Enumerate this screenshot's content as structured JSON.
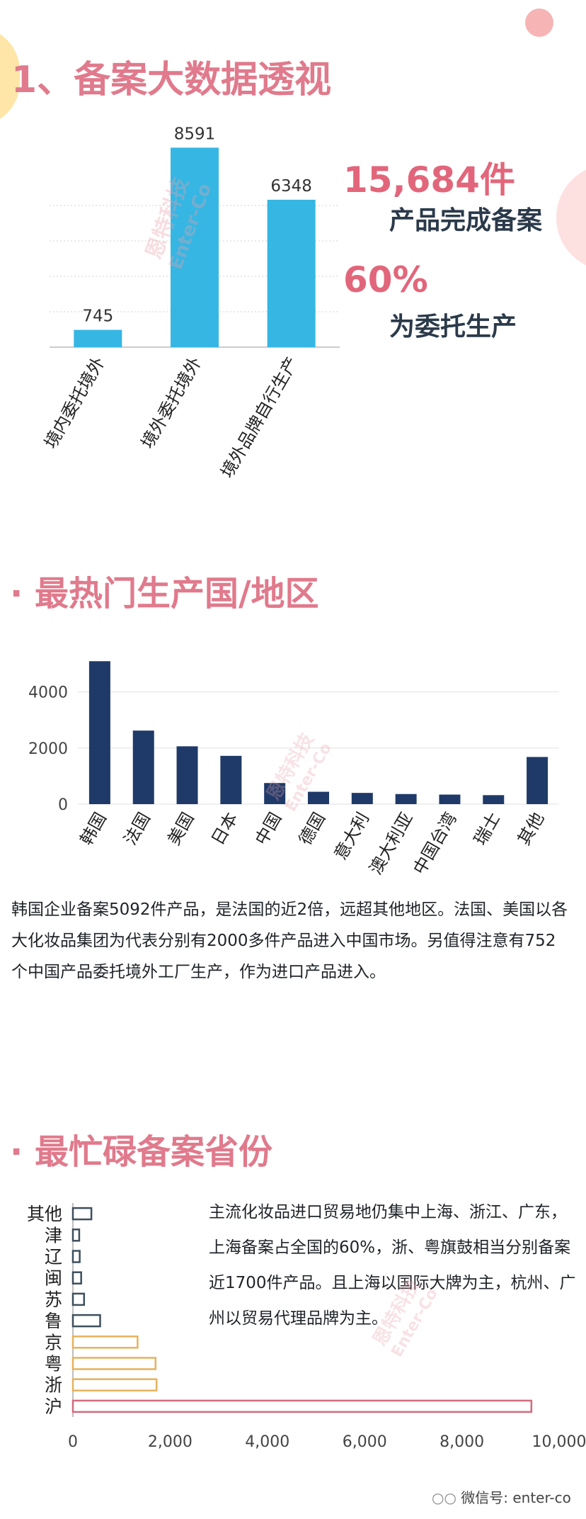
{
  "section1": {
    "title": "1、备案大数据透视",
    "highlight_total": "15,684件",
    "highlight_total_caption": "产品完成备案",
    "highlight_percent": "60%",
    "highlight_percent_caption": "为委托生产"
  },
  "section2": {
    "title": "· 最热门生产国/地区",
    "paragraph": "韩国企业备案5092件产品，是法国的近2倍，远超其他地区。法国、美国以各大化妆品集团为代表分别有2000多件产品进入中国市场。另值得注意有752个中国产品委托境外工厂生产，作为进口产品进入。"
  },
  "section3": {
    "title": "· 最忙碌备案省份",
    "paragraph": "主流化妆品进口贸易地仍集中上海、浙江、广东，上海备案占全国的60%，浙、粤旗鼓相当分别备案近1700件产品。且上海以国际大牌为主，杭州、广州以贸易代理品牌为主。"
  },
  "watermark": {
    "cn": "恩特科技",
    "en": "Enter-Co"
  },
  "footer": {
    "wechat_label": "微信号: enter-co"
  },
  "colors": {
    "accent_pink": "#e07a8c",
    "bar_cyan": "#36b6e3",
    "bar_navy": "#1f3a68",
    "bar_gold": "#e6b25c",
    "bar_red": "#d46a7e",
    "bar_slate": "#3d4f5c"
  },
  "chart_data": [
    {
      "type": "bar",
      "categories": [
        "境内委托境外",
        "境外委托境外",
        "境外品牌自行生产"
      ],
      "values": [
        745,
        8591,
        6348
      ],
      "data_labels": [
        "745",
        "8591",
        "6348"
      ],
      "ylim": [
        0,
        9000
      ],
      "grid": false,
      "legend": "none"
    },
    {
      "type": "bar",
      "categories": [
        "韩国",
        "法国",
        "美国",
        "日本",
        "中国",
        "德国",
        "意大利",
        "澳大利亚",
        "中国台湾",
        "瑞士",
        "其他"
      ],
      "values": [
        5092,
        2620,
        2060,
        1720,
        752,
        440,
        400,
        360,
        340,
        320,
        1680
      ],
      "yticks": [
        "0",
        "2000",
        "4000"
      ],
      "ylim": [
        0,
        5300
      ],
      "grid": true,
      "legend": "none"
    },
    {
      "type": "bar",
      "orientation": "horizontal",
      "categories": [
        "其他",
        "津",
        "辽",
        "闽",
        "苏",
        "鲁",
        "京",
        "粤",
        "浙",
        "沪"
      ],
      "values": [
        380,
        130,
        140,
        170,
        230,
        560,
        1330,
        1700,
        1720,
        9430
      ],
      "xticks": [
        "0",
        "2,000",
        "4,000",
        "6,000",
        "8,000",
        "10,000"
      ],
      "xlim": [
        0,
        10000
      ],
      "grid": false,
      "legend": "none"
    }
  ]
}
